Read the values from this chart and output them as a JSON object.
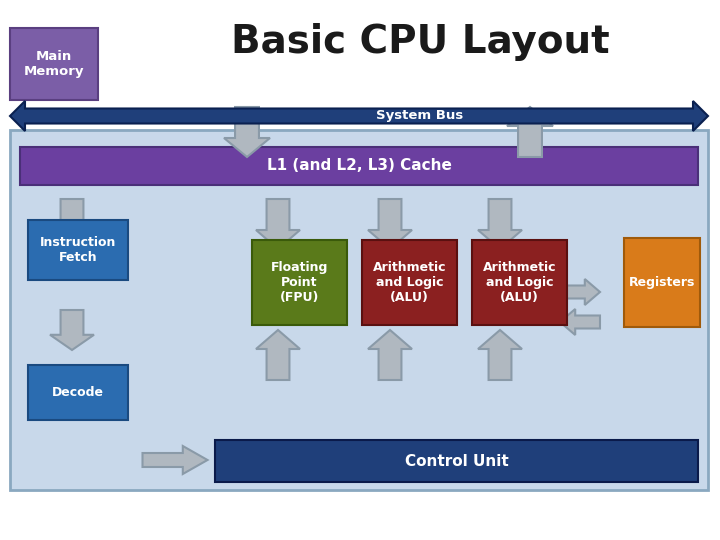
{
  "title": "Basic CPU Layout",
  "title_fontsize": 28,
  "title_color": "#1a1a1a",
  "bg_color": "#ffffff",
  "colors": {
    "main_memory": "#7B5EA7",
    "system_bus": "#1F3F7A",
    "cache_bar": "#6B3FA0",
    "cpu_box": "#C8D8EA",
    "instruction_fetch": "#2B6CB0",
    "decode": "#2B6CB0",
    "fpu": "#5A7A1A",
    "alu": "#8B2020",
    "registers": "#D97B1A",
    "control_unit": "#1F3F7A",
    "arrow_gray": "#B0B8C0",
    "arrow_outline": "#8A9AA8",
    "text_white": "#FFFFFF",
    "text_dark": "#1a1a1a"
  },
  "labels": {
    "main_memory": "Main\nMemory",
    "system_bus": "System Bus",
    "cache": "L1 (and L2, L3) Cache",
    "instruction_fetch": "Instruction\nFetch",
    "decode": "Decode",
    "fpu": "Floating\nPoint\n(FPU)",
    "alu1": "Arithmetic\nand Logic\n(ALU)",
    "alu2": "Arithmetic\nand Logic\n(ALU)",
    "registers": "Registers",
    "control_unit": "Control Unit"
  }
}
